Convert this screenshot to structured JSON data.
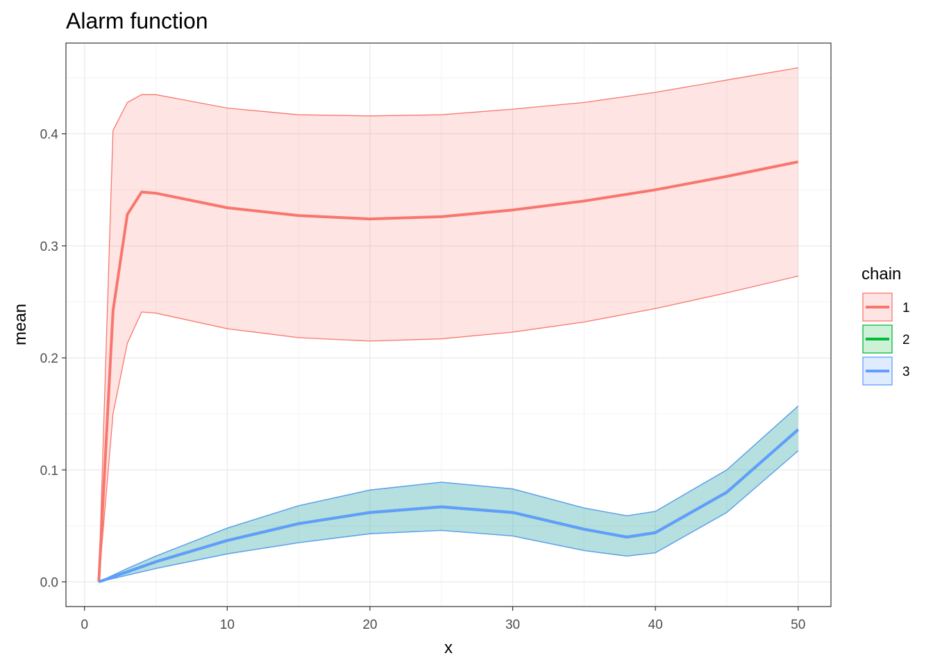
{
  "chart_data": {
    "type": "line",
    "title": "Alarm function",
    "xlabel": "x",
    "ylabel": "mean",
    "xlim": [
      -1.3,
      52.3
    ],
    "ylim": [
      -0.022,
      0.481
    ],
    "x_ticks": [
      0,
      10,
      20,
      30,
      40,
      50
    ],
    "y_ticks": [
      0.0,
      0.1,
      0.2,
      0.3,
      0.4
    ],
    "y_tick_labels": [
      "0.0",
      "0.1",
      "0.2",
      "0.3",
      "0.4"
    ],
    "grid": true,
    "legend": {
      "title": "chain",
      "placement": "right",
      "entries": [
        "1",
        "2",
        "3"
      ]
    },
    "series": [
      {
        "name": "1",
        "color": "#F8766D",
        "ribbon_fill": "rgba(248,118,109,0.2)",
        "x": [
          1,
          2,
          3,
          4,
          5,
          10,
          15,
          20,
          25,
          30,
          35,
          40,
          45,
          50
        ],
        "mean": [
          0.0,
          0.242,
          0.328,
          0.348,
          0.347,
          0.334,
          0.327,
          0.324,
          0.326,
          0.332,
          0.34,
          0.35,
          0.362,
          0.375
        ],
        "lower": [
          0.0,
          0.15,
          0.213,
          0.241,
          0.24,
          0.226,
          0.218,
          0.215,
          0.217,
          0.223,
          0.232,
          0.244,
          0.258,
          0.273
        ],
        "upper": [
          0.0,
          0.403,
          0.428,
          0.435,
          0.435,
          0.423,
          0.417,
          0.416,
          0.417,
          0.422,
          0.428,
          0.437,
          0.448,
          0.459
        ]
      },
      {
        "name": "2",
        "color": "#00BA38",
        "ribbon_fill": "rgba(0,186,56,0.2)",
        "x": [
          1,
          3,
          5,
          10,
          15,
          20,
          25,
          30,
          35,
          38,
          40,
          45,
          50
        ],
        "mean": [
          0.0,
          0.009,
          0.018,
          0.037,
          0.052,
          0.062,
          0.067,
          0.062,
          0.047,
          0.04,
          0.044,
          0.08,
          0.136
        ],
        "lower": [
          0.0,
          0.006,
          0.012,
          0.025,
          0.035,
          0.043,
          0.046,
          0.041,
          0.028,
          0.023,
          0.026,
          0.062,
          0.117
        ],
        "upper": [
          0.0,
          0.012,
          0.023,
          0.048,
          0.068,
          0.082,
          0.089,
          0.083,
          0.066,
          0.059,
          0.063,
          0.1,
          0.157
        ]
      },
      {
        "name": "3",
        "color": "#619CFF",
        "ribbon_fill": "rgba(97,156,255,0.2)",
        "x": [
          1,
          3,
          5,
          10,
          15,
          20,
          25,
          30,
          35,
          38,
          40,
          45,
          50
        ],
        "mean": [
          0.0,
          0.009,
          0.018,
          0.037,
          0.052,
          0.062,
          0.067,
          0.062,
          0.047,
          0.04,
          0.044,
          0.08,
          0.136
        ],
        "lower": [
          0.0,
          0.006,
          0.012,
          0.025,
          0.035,
          0.043,
          0.046,
          0.041,
          0.028,
          0.023,
          0.026,
          0.062,
          0.117
        ],
        "upper": [
          0.0,
          0.012,
          0.023,
          0.048,
          0.068,
          0.082,
          0.089,
          0.083,
          0.066,
          0.059,
          0.063,
          0.1,
          0.157
        ]
      }
    ]
  }
}
